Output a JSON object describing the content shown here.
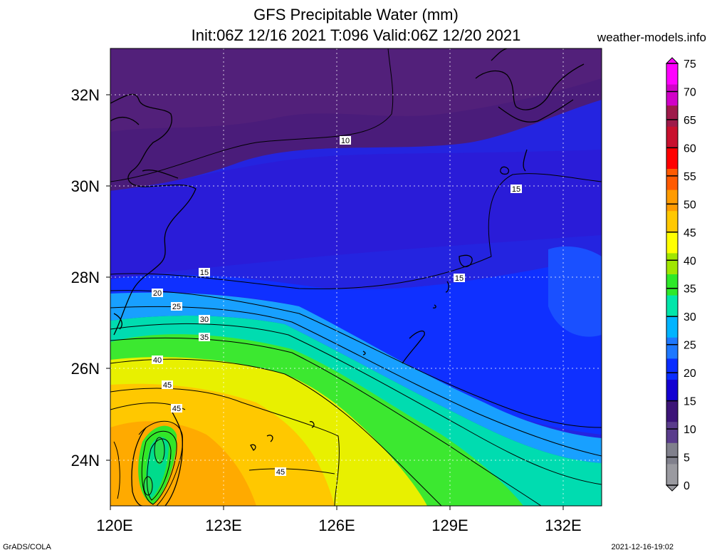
{
  "title_line1": "GFS Precipitable Water (mm)",
  "title_line2": "Init:06Z 12/16 2021 T:096 Valid:06Z 12/20 2021",
  "site": "weather-models.info",
  "footer_left": "GrADS/COLA",
  "footer_right": "2021-12-16-19:02",
  "lon_labels": [
    "120E",
    "123E",
    "126E",
    "129E",
    "132E"
  ],
  "lat_labels": [
    "32N",
    "30N",
    "28N",
    "26N",
    "24N"
  ],
  "contour_labels": [
    "10",
    "15",
    "15",
    "15",
    "20",
    "25",
    "30",
    "35",
    "40",
    "45",
    "45",
    "45"
  ],
  "colorbar": {
    "labels": [
      "75",
      "70",
      "65",
      "60",
      "55",
      "50",
      "45",
      "40",
      "35",
      "30",
      "25",
      "20",
      "15",
      "10",
      "5",
      "0"
    ],
    "colors": [
      "#ff00ff",
      "#d100c8",
      "#9e1a4a",
      "#c8102e",
      "#ff0000",
      "#ff5a00",
      "#ff9b00",
      "#ffc800",
      "#ffff00",
      "#a0e600",
      "#2ee82a",
      "#00e6aa",
      "#00b4ff",
      "#1e78ff",
      "#0a2dff",
      "#1400d2",
      "#3c1478",
      "#5a3c8c",
      "#80808c",
      "#9a9aa0"
    ]
  }
}
